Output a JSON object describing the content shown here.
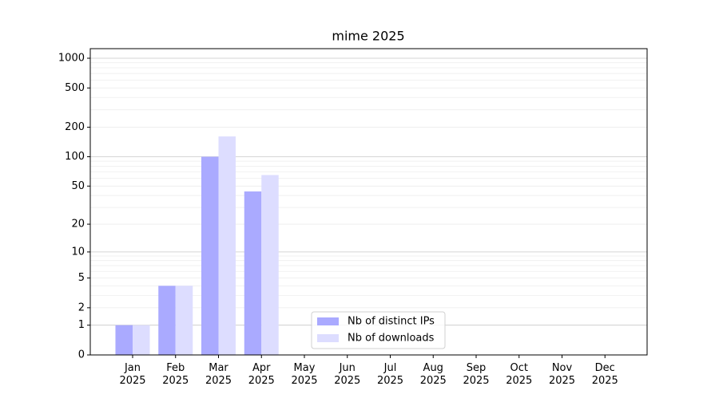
{
  "chart_data": {
    "type": "bar",
    "title": "mime 2025",
    "categories": [
      "Jan 2025",
      "Feb 2025",
      "Mar 2025",
      "Apr 2025",
      "May 2025",
      "Jun 2025",
      "Jul 2025",
      "Aug 2025",
      "Sep 2025",
      "Oct 2025",
      "Nov 2025",
      "Dec 2025"
    ],
    "series": [
      {
        "name": "Nb of distinct IPs",
        "color": "#aaaaff",
        "values": [
          1,
          4,
          100,
          44,
          null,
          null,
          null,
          null,
          null,
          null,
          null,
          null
        ]
      },
      {
        "name": "Nb of downloads",
        "color": "#ddddff",
        "values": [
          1,
          4,
          161,
          65,
          null,
          null,
          null,
          null,
          null,
          null,
          null,
          null
        ]
      }
    ],
    "yscale": "log1p",
    "ylim": [
      0,
      1250
    ],
    "yticks": [
      0,
      1,
      2,
      5,
      10,
      20,
      50,
      100,
      200,
      500,
      1000
    ],
    "minor_yticks": [
      3,
      4,
      6,
      7,
      8,
      9,
      30,
      40,
      60,
      70,
      80,
      90,
      300,
      400,
      600,
      700,
      800,
      900
    ],
    "grid": true,
    "legend": "lower center"
  }
}
